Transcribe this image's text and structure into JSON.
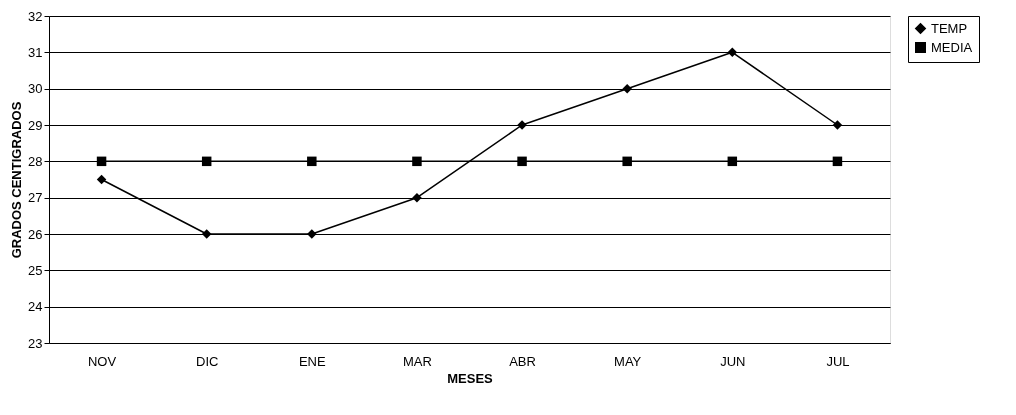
{
  "chart_data": {
    "type": "line",
    "xlabel": "MESES",
    "ylabel": "GRADOS CENTIGRADOS",
    "categories": [
      "NOV",
      "DIC",
      "ENE",
      "MAR",
      "ABR",
      "MAY",
      "JUN",
      "JUL"
    ],
    "series": [
      {
        "name": "TEMP",
        "color": "#000000",
        "marker": "diamond",
        "values": [
          27.5,
          26,
          26,
          27,
          29,
          30,
          31,
          29
        ]
      },
      {
        "name": "MEDIA",
        "color": "#000000",
        "marker": "square",
        "values": [
          28,
          28,
          28,
          28,
          28,
          28,
          28,
          28
        ]
      }
    ],
    "ylim": [
      23,
      32
    ],
    "yticks": [
      23,
      24,
      25,
      26,
      27,
      28,
      29,
      30,
      31,
      32
    ],
    "grid": "y",
    "legend": "right",
    "line_style": "solid"
  }
}
